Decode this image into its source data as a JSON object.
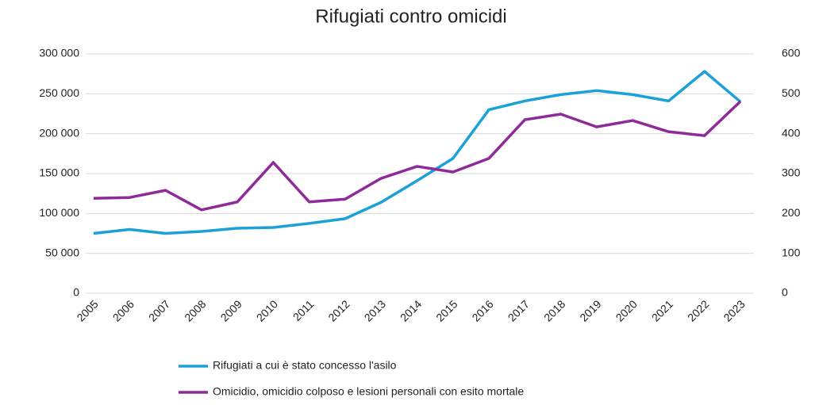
{
  "chart_data": {
    "type": "line",
    "title": "Rifugiati contro omicidi",
    "categories": [
      "2005",
      "2006",
      "2007",
      "2008",
      "2009",
      "2010",
      "2011",
      "2012",
      "2013",
      "2014",
      "2015",
      "2016",
      "2017",
      "2018",
      "2019",
      "2020",
      "2021",
      "2022",
      "2023"
    ],
    "series": [
      {
        "name": "Rifugiati  a cui è stato concesso l'asilo",
        "color": "#1ba1d8",
        "values": [
          75000,
          80000,
          75000,
          77500,
          81500,
          82500,
          87500,
          93500,
          114000,
          141000,
          169000,
          230000,
          241000,
          249000,
          254000,
          249000,
          241000,
          278000,
          240000
        ]
      },
      {
        "name": "Omicidio, omicidio colposo e lesioni personali  con esito mortale",
        "color": "#8e2a99",
        "axis": "y2",
        "values": [
          238,
          240,
          258,
          209,
          229,
          328,
          229,
          236,
          288,
          318,
          304,
          338,
          435,
          449,
          417,
          433,
          405,
          395,
          481
        ]
      }
    ],
    "ylim": [
      0,
      300000
    ],
    "yticks": [
      {
        "value": 0,
        "label": "0"
      },
      {
        "value": 50000,
        "label": "50 000"
      },
      {
        "value": 100000,
        "label": "100 000"
      },
      {
        "value": 150000,
        "label": "150 000"
      },
      {
        "value": 200000,
        "label": "200 000"
      },
      {
        "value": 250000,
        "label": "250 000"
      },
      {
        "value": 300000,
        "label": "300 000"
      }
    ],
    "y2lim": [
      0,
      600
    ],
    "y2ticks": [
      0,
      100,
      200,
      300,
      400,
      500,
      600
    ],
    "grid": true
  }
}
